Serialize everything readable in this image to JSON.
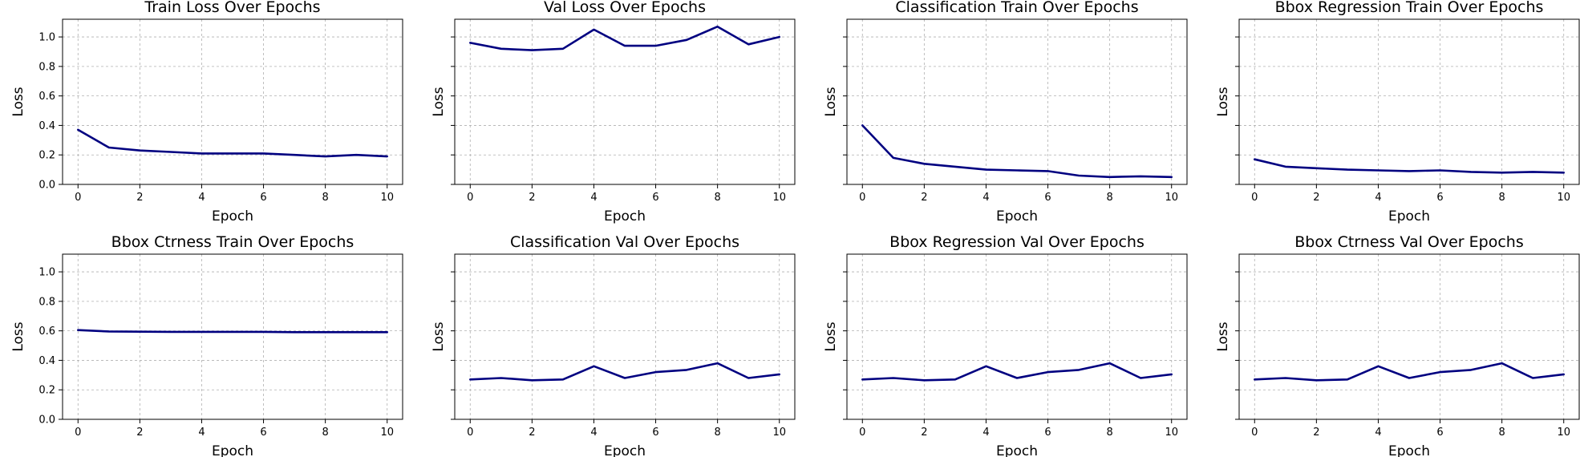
{
  "colors": {
    "series": "#000080",
    "grid": "#b0b0b0"
  },
  "chart_data": [
    {
      "type": "line",
      "title": "Train Loss Over Epochs",
      "xlabel": "Epoch",
      "ylabel": "Loss",
      "xlim": [
        -0.5,
        10.5
      ],
      "ylim": [
        0,
        1.12
      ],
      "xticks": [
        0,
        2,
        4,
        6,
        8,
        10
      ],
      "yticks": [
        0.0,
        0.2,
        0.4,
        0.6,
        0.8,
        1.0
      ],
      "show_ytick_labels": true,
      "grid": true,
      "x": [
        0,
        1,
        2,
        3,
        4,
        5,
        6,
        7,
        8,
        9,
        10
      ],
      "series": [
        {
          "values": [
            0.37,
            0.25,
            0.23,
            0.22,
            0.21,
            0.21,
            0.21,
            0.2,
            0.19,
            0.2,
            0.19
          ]
        }
      ]
    },
    {
      "type": "line",
      "title": "Val Loss Over Epochs",
      "xlabel": "Epoch",
      "ylabel": "Loss",
      "xlim": [
        -0.5,
        10.5
      ],
      "ylim": [
        0,
        1.12
      ],
      "xticks": [
        0,
        2,
        4,
        6,
        8,
        10
      ],
      "yticks": [
        0.0,
        0.2,
        0.4,
        0.6,
        0.8,
        1.0
      ],
      "show_ytick_labels": false,
      "grid": true,
      "x": [
        0,
        1,
        2,
        3,
        4,
        5,
        6,
        7,
        8,
        9,
        10
      ],
      "series": [
        {
          "values": [
            0.96,
            0.92,
            0.91,
            0.92,
            1.05,
            0.94,
            0.94,
            0.98,
            1.07,
            0.95,
            1.0
          ]
        }
      ]
    },
    {
      "type": "line",
      "title": "Classification Train Over Epochs",
      "xlabel": "Epoch",
      "ylabel": "Loss",
      "xlim": [
        -0.5,
        10.5
      ],
      "ylim": [
        0,
        1.12
      ],
      "xticks": [
        0,
        2,
        4,
        6,
        8,
        10
      ],
      "yticks": [
        0.0,
        0.2,
        0.4,
        0.6,
        0.8,
        1.0
      ],
      "show_ytick_labels": false,
      "grid": true,
      "x": [
        0,
        1,
        2,
        3,
        4,
        5,
        6,
        7,
        8,
        9,
        10
      ],
      "series": [
        {
          "values": [
            0.4,
            0.18,
            0.14,
            0.12,
            0.1,
            0.095,
            0.09,
            0.06,
            0.05,
            0.055,
            0.05
          ]
        }
      ]
    },
    {
      "type": "line",
      "title": "Bbox Regression Train Over Epochs",
      "xlabel": "Epoch",
      "ylabel": "Loss",
      "xlim": [
        -0.5,
        10.5
      ],
      "ylim": [
        0,
        1.12
      ],
      "xticks": [
        0,
        2,
        4,
        6,
        8,
        10
      ],
      "yticks": [
        0.0,
        0.2,
        0.4,
        0.6,
        0.8,
        1.0
      ],
      "show_ytick_labels": false,
      "grid": true,
      "x": [
        0,
        1,
        2,
        3,
        4,
        5,
        6,
        7,
        8,
        9,
        10
      ],
      "series": [
        {
          "values": [
            0.17,
            0.12,
            0.11,
            0.1,
            0.095,
            0.09,
            0.095,
            0.085,
            0.08,
            0.085,
            0.08
          ]
        }
      ]
    },
    {
      "type": "line",
      "title": "Bbox Ctrness Train Over Epochs",
      "xlabel": "Epoch",
      "ylabel": "Loss",
      "xlim": [
        -0.5,
        10.5
      ],
      "ylim": [
        0,
        1.12
      ],
      "xticks": [
        0,
        2,
        4,
        6,
        8,
        10
      ],
      "yticks": [
        0.0,
        0.2,
        0.4,
        0.6,
        0.8,
        1.0
      ],
      "show_ytick_labels": true,
      "grid": true,
      "x": [
        0,
        1,
        2,
        3,
        4,
        5,
        6,
        7,
        8,
        9,
        10
      ],
      "series": [
        {
          "values": [
            0.605,
            0.596,
            0.594,
            0.593,
            0.593,
            0.593,
            0.593,
            0.591,
            0.591,
            0.591,
            0.591
          ]
        }
      ]
    },
    {
      "type": "line",
      "title": "Classification Val Over Epochs",
      "xlabel": "Epoch",
      "ylabel": "Loss",
      "xlim": [
        -0.5,
        10.5
      ],
      "ylim": [
        0,
        1.12
      ],
      "xticks": [
        0,
        2,
        4,
        6,
        8,
        10
      ],
      "yticks": [
        0.0,
        0.2,
        0.4,
        0.6,
        0.8,
        1.0
      ],
      "show_ytick_labels": false,
      "grid": true,
      "x": [
        0,
        1,
        2,
        3,
        4,
        5,
        6,
        7,
        8,
        9,
        10
      ],
      "series": [
        {
          "values": [
            0.27,
            0.28,
            0.265,
            0.27,
            0.36,
            0.28,
            0.32,
            0.335,
            0.38,
            0.28,
            0.305
          ]
        }
      ]
    },
    {
      "type": "line",
      "title": "Bbox Regression Val Over Epochs",
      "xlabel": "Epoch",
      "ylabel": "Loss",
      "xlim": [
        -0.5,
        10.5
      ],
      "ylim": [
        0,
        1.12
      ],
      "xticks": [
        0,
        2,
        4,
        6,
        8,
        10
      ],
      "yticks": [
        0.0,
        0.2,
        0.4,
        0.6,
        0.8,
        1.0
      ],
      "show_ytick_labels": false,
      "grid": true,
      "x": [
        0,
        1,
        2,
        3,
        4,
        5,
        6,
        7,
        8,
        9,
        10
      ],
      "series": [
        {
          "values": [
            0.27,
            0.28,
            0.265,
            0.27,
            0.36,
            0.28,
            0.32,
            0.335,
            0.38,
            0.28,
            0.305
          ]
        }
      ]
    },
    {
      "type": "line",
      "title": "Bbox Ctrness Val Over Epochs",
      "xlabel": "Epoch",
      "ylabel": "Loss",
      "xlim": [
        -0.5,
        10.5
      ],
      "ylim": [
        0,
        1.12
      ],
      "xticks": [
        0,
        2,
        4,
        6,
        8,
        10
      ],
      "yticks": [
        0.0,
        0.2,
        0.4,
        0.6,
        0.8,
        1.0
      ],
      "show_ytick_labels": false,
      "grid": true,
      "x": [
        0,
        1,
        2,
        3,
        4,
        5,
        6,
        7,
        8,
        9,
        10
      ],
      "series": [
        {
          "values": [
            0.27,
            0.28,
            0.265,
            0.27,
            0.36,
            0.28,
            0.32,
            0.335,
            0.38,
            0.28,
            0.305
          ]
        }
      ]
    }
  ]
}
